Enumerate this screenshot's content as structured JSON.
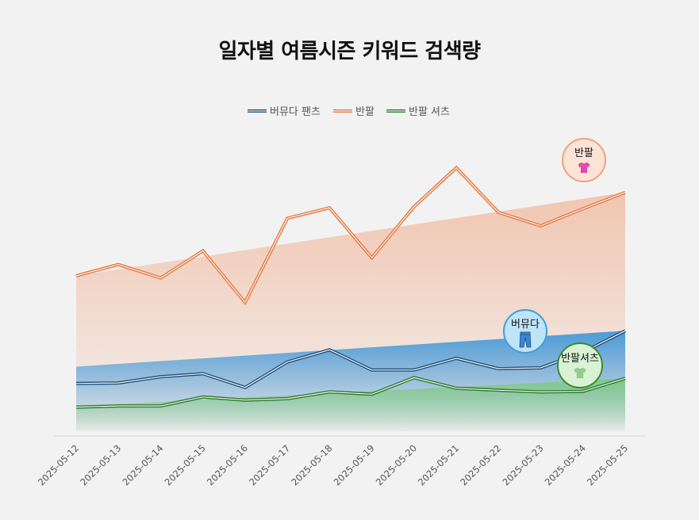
{
  "chart_data": {
    "type": "area",
    "title": "일자별 여름시즌 키워드 검색량",
    "xlabel": "",
    "ylabel": "",
    "legend_position": "top-center",
    "grid": false,
    "x": [
      "2025-05-12",
      "2025-05-13",
      "2025-05-14",
      "2025-05-15",
      "2025-05-16",
      "2025-05-17",
      "2025-05-18",
      "2025-05-19",
      "2025-05-20",
      "2025-05-21",
      "2025-05-22",
      "2025-05-23",
      "2025-05-24",
      "2025-05-25"
    ],
    "ylim": [
      0,
      100
    ],
    "series": [
      {
        "name": "버뮤다 팬츠",
        "color": "#1f4e79",
        "fill_color": "#2e8fd8",
        "values": [
          17.0,
          17.2,
          19.4,
          20.5,
          15.6,
          24.7,
          29.0,
          21.8,
          21.8,
          26.0,
          22.3,
          22.6,
          28.1,
          35.8
        ],
        "trend": [
          23.0,
          35.8
        ],
        "badge_label": "버뮤다",
        "badge_icon": "jeans-icon",
        "badge_bg": "#bfe3f7",
        "badge_border": "#3c9fdc"
      },
      {
        "name": "반팔",
        "color": "#e8773f",
        "fill_color": "#f0a27b",
        "values": [
          55.4,
          59.4,
          54.6,
          64.3,
          45.9,
          75.9,
          79.6,
          61.8,
          80.0,
          93.9,
          78.0,
          73.2,
          79.3,
          85.1
        ],
        "trend": [
          55.4,
          85.1
        ],
        "badge_label": "반팔",
        "badge_icon": "t-shirt-icon",
        "badge_bg": "#fbe3d6",
        "badge_border": "#f0a27b"
      },
      {
        "name": "반팔 셔츠",
        "color": "#2a7a2a",
        "fill_color": "#7cc97c",
        "values": [
          8.6,
          9.0,
          9.0,
          12.2,
          11.1,
          11.6,
          14.0,
          13.2,
          19.1,
          15.3,
          14.6,
          14.0,
          14.2,
          18.8
        ],
        "trend": [
          9.0,
          18.8
        ],
        "badge_label": "반팔셔츠",
        "badge_icon": "t-shirt-icon",
        "badge_bg": "#d9f2d3",
        "badge_border": "#3a8a30"
      }
    ]
  }
}
